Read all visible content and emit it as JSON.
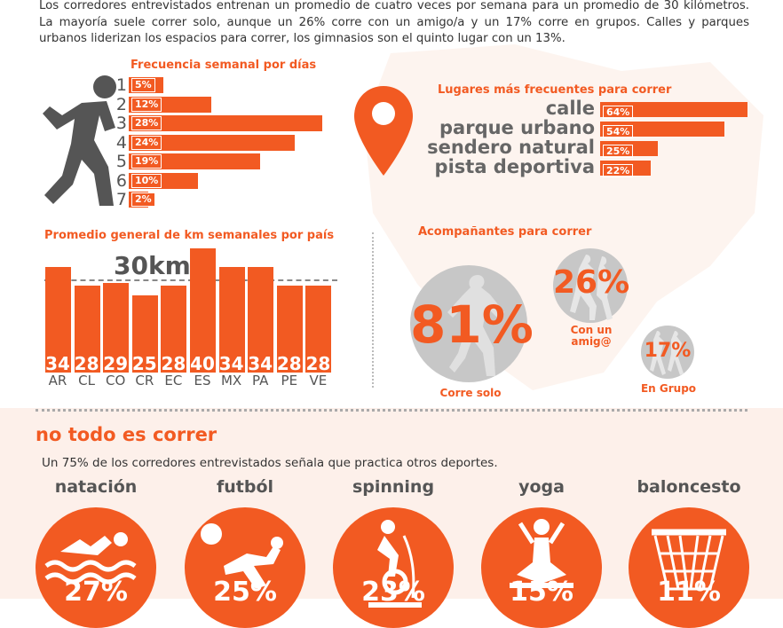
{
  "intro_text": "Los corredores entrevistados entrenan un promedio de cuatro veces por semana para un promedio de 30 kilómetros. La mayoría suele correr solo, aunque un 26% corre con un amigo/a  y un 17% corre en grupos. Calles y parques urbanos liderizan los espacios para correr, los gimnasios son el quinto lugar con un 13%.",
  "colors": {
    "accent": "#f25a22",
    "gray": "#c7c7c7",
    "text": "#555555"
  },
  "chart_data": [
    {
      "type": "bar",
      "title": "Frecuencia semanal por días",
      "categories": [
        "1",
        "2",
        "3",
        "4",
        "5",
        "6",
        "7"
      ],
      "values": [
        5,
        12,
        28,
        24,
        19,
        10,
        2
      ],
      "labels": [
        "5%",
        "12%",
        "28%",
        "24%",
        "19%",
        "10%",
        "2%"
      ],
      "orientation": "horizontal"
    },
    {
      "type": "bar",
      "title": "Lugares más frecuentes para correr",
      "categories": [
        "calle",
        "parque urbano",
        "sendero natural",
        "pista deportiva"
      ],
      "values": [
        64,
        54,
        25,
        22
      ],
      "labels": [
        "64%",
        "54%",
        "25%",
        "22%"
      ],
      "orientation": "horizontal"
    },
    {
      "type": "bar",
      "title": "Promedio general de km semanales por país",
      "categories": [
        "AR",
        "CL",
        "CO",
        "CR",
        "EC",
        "ES",
        "MX",
        "PA",
        "PE",
        "VE"
      ],
      "values": [
        34,
        28,
        29,
        25,
        28,
        40,
        34,
        34,
        28,
        28
      ],
      "labels": [
        "34",
        "28",
        "29",
        "25",
        "28",
        "40",
        "34",
        "34",
        "28",
        "28"
      ],
      "reference_line": {
        "value": 30,
        "label": "30km"
      }
    },
    {
      "type": "bubble",
      "title": "Acompañantes para correr",
      "items": [
        {
          "name": "Corre solo",
          "value": 81,
          "label": "81%"
        },
        {
          "name": "Con un amig@",
          "value": 26,
          "label": "26%"
        },
        {
          "name": "En Grupo",
          "value": 17,
          "label": "17%"
        }
      ]
    },
    {
      "type": "bubble",
      "title": "no todo es correr",
      "items": [
        {
          "name": "natación",
          "value": 27,
          "label": "27%",
          "icon": "swimmer-icon"
        },
        {
          "name": "futból",
          "value": 25,
          "label": "25%",
          "icon": "soccer-player-icon"
        },
        {
          "name": "spinning",
          "value": 23,
          "label": "23%",
          "icon": "spin-bike-icon"
        },
        {
          "name": "yoga",
          "value": 15,
          "label": "15%",
          "icon": "yoga-pose-icon"
        },
        {
          "name": "baloncesto",
          "value": 11,
          "label": "11%",
          "icon": "basketball-hoop-icon"
        }
      ]
    }
  ],
  "section2": {
    "title": "no todo es correr",
    "text": "Un 75% de los corredores entrevistados señala que practica otros deportes."
  },
  "companions_captions": {
    "solo": "Corre solo",
    "amigo_line1": "Con un",
    "amigo_line2": "amig@",
    "grupo": "En Grupo"
  }
}
